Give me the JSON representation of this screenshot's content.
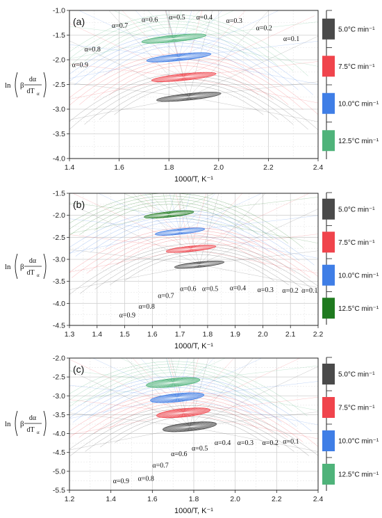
{
  "legend_entries": [
    "5.0°C min⁻¹",
    "7.5°C min⁻¹",
    "10.0°C min⁻¹",
    "12.5°C min⁻¹"
  ],
  "colors": {
    "5.0": "#4a4a4a",
    "7.5": "#f0444c",
    "10.0": "#3f7ee6",
    "12.5": "#4fb37a",
    "12.5_b": "#1f7a1f",
    "grid": "#cfcfcf"
  },
  "ylabel": {
    "ln": "ln",
    "beta": "β",
    "numerator": "dα",
    "denominator": "dT",
    "subscript": "α"
  },
  "chart_data": [
    {
      "type": "scatter",
      "panel_label": "(a)",
      "xlabel": "1000/T, K⁻¹",
      "xlim": [
        1.4,
        2.4
      ],
      "ylim": [
        -4.0,
        -1.0
      ],
      "xticks": [
        "1.4",
        "1.6",
        "1.8",
        "2.0",
        "2.2",
        "2.4"
      ],
      "yticks": [
        "-4.0",
        "-3.5",
        "-3.0",
        "-2.5",
        "-2.0",
        "-1.5",
        "-1.0"
      ],
      "grid": true,
      "legend_position": "right",
      "alpha_labels": [
        {
          "text": "α=0.9",
          "x": 1.41,
          "y": -2.15
        },
        {
          "text": "α=0.8",
          "x": 1.46,
          "y": -1.83
        },
        {
          "text": "α=0.7",
          "x": 1.57,
          "y": -1.35
        },
        {
          "text": "α=0.6",
          "x": 1.69,
          "y": -1.23
        },
        {
          "text": "α=0.5",
          "x": 1.8,
          "y": -1.18
        },
        {
          "text": "α=0.4",
          "x": 1.91,
          "y": -1.18
        },
        {
          "text": "α=0.3",
          "x": 2.03,
          "y": -1.25
        },
        {
          "text": "α=0.2",
          "x": 2.15,
          "y": -1.4
        },
        {
          "text": "α=0.1",
          "x": 2.26,
          "y": -1.62
        }
      ],
      "series": [
        {
          "name": "5.0°C min⁻¹",
          "center": [
            1.88,
            -2.75
          ],
          "spread": [
            0.13,
            0.11
          ]
        },
        {
          "name": "7.5°C min⁻¹",
          "center": [
            1.86,
            -2.35
          ],
          "spread": [
            0.13,
            0.11
          ]
        },
        {
          "name": "10.0°C min⁻¹",
          "center": [
            1.84,
            -1.95
          ],
          "spread": [
            0.13,
            0.11
          ]
        },
        {
          "name": "12.5°C min⁻¹",
          "center": [
            1.82,
            -1.57
          ],
          "spread": [
            0.13,
            0.11
          ]
        }
      ]
    },
    {
      "type": "scatter",
      "panel_label": "(b)",
      "xlabel": "1000/T, K⁻¹",
      "xlim": [
        1.3,
        2.2
      ],
      "ylim": [
        -4.5,
        -1.5
      ],
      "xticks": [
        "1.3",
        "1.4",
        "1.5",
        "1.6",
        "1.7",
        "1.8",
        "1.9",
        "2.0",
        "2.1",
        "2.2"
      ],
      "yticks": [
        "-4.5",
        "-4.0",
        "-3.5",
        "-3.0",
        "-2.5",
        "-2.0",
        "-1.5"
      ],
      "grid": true,
      "legend_position": "right",
      "alpha_labels": [
        {
          "text": "α=0.9",
          "x": 1.48,
          "y": -4.32
        },
        {
          "text": "α=0.8",
          "x": 1.55,
          "y": -4.12
        },
        {
          "text": "α=0.7",
          "x": 1.62,
          "y": -3.88
        },
        {
          "text": "α=0.6",
          "x": 1.7,
          "y": -3.72
        },
        {
          "text": "α=0.5",
          "x": 1.78,
          "y": -3.72
        },
        {
          "text": "α=0.4",
          "x": 1.88,
          "y": -3.7
        },
        {
          "text": "α=0.3",
          "x": 1.98,
          "y": -3.74
        },
        {
          "text": "α=0.2",
          "x": 2.07,
          "y": -3.76
        },
        {
          "text": "α=0.1",
          "x": 2.14,
          "y": -3.76
        }
      ],
      "series": [
        {
          "name": "5.0°C min⁻¹",
          "center": [
            1.77,
            -3.12
          ],
          "spread": [
            0.09,
            0.1
          ]
        },
        {
          "name": "7.5°C min⁻¹",
          "center": [
            1.74,
            -2.76
          ],
          "spread": [
            0.09,
            0.1
          ]
        },
        {
          "name": "10.0°C min⁻¹",
          "center": [
            1.7,
            -2.37
          ],
          "spread": [
            0.09,
            0.1
          ]
        },
        {
          "name": "12.5°C min⁻¹",
          "center": [
            1.66,
            -1.98
          ],
          "spread": [
            0.09,
            0.1
          ]
        }
      ]
    },
    {
      "type": "scatter",
      "panel_label": "(c)",
      "xlabel": "1000/T, K⁻¹",
      "xlim": [
        1.2,
        2.4
      ],
      "ylim": [
        -5.5,
        -2.0
      ],
      "xticks": [
        "1.2",
        "1.4",
        "1.6",
        "1.8",
        "2.0",
        "2.2",
        "2.4"
      ],
      "yticks": [
        "-5.5",
        "-5.0",
        "-4.5",
        "-4.0",
        "-3.5",
        "-3.0",
        "-2.5",
        "-2.0"
      ],
      "grid": true,
      "legend_position": "right",
      "alpha_labels": [
        {
          "text": "α=0.9",
          "x": 1.41,
          "y": -5.32
        },
        {
          "text": "α=0.8",
          "x": 1.53,
          "y": -5.25
        },
        {
          "text": "α=0.7",
          "x": 1.6,
          "y": -4.9
        },
        {
          "text": "α=0.6",
          "x": 1.69,
          "y": -4.6
        },
        {
          "text": "α=0.5",
          "x": 1.79,
          "y": -4.45
        },
        {
          "text": "α=0.4",
          "x": 1.9,
          "y": -4.3
        },
        {
          "text": "α=0.3",
          "x": 2.01,
          "y": -4.3
        },
        {
          "text": "α=0.2",
          "x": 2.13,
          "y": -4.3
        },
        {
          "text": "α=0.1",
          "x": 2.23,
          "y": -4.27
        }
      ],
      "series": [
        {
          "name": "5.0°C min⁻¹",
          "center": [
            1.78,
            -3.82
          ],
          "spread": [
            0.13,
            0.18
          ]
        },
        {
          "name": "7.5°C min⁻¹",
          "center": [
            1.75,
            -3.45
          ],
          "spread": [
            0.13,
            0.18
          ]
        },
        {
          "name": "10.0°C min⁻¹",
          "center": [
            1.72,
            -3.05
          ],
          "spread": [
            0.13,
            0.18
          ]
        },
        {
          "name": "12.5°C min⁻¹",
          "center": [
            1.7,
            -2.65
          ],
          "spread": [
            0.13,
            0.18
          ]
        }
      ]
    }
  ]
}
